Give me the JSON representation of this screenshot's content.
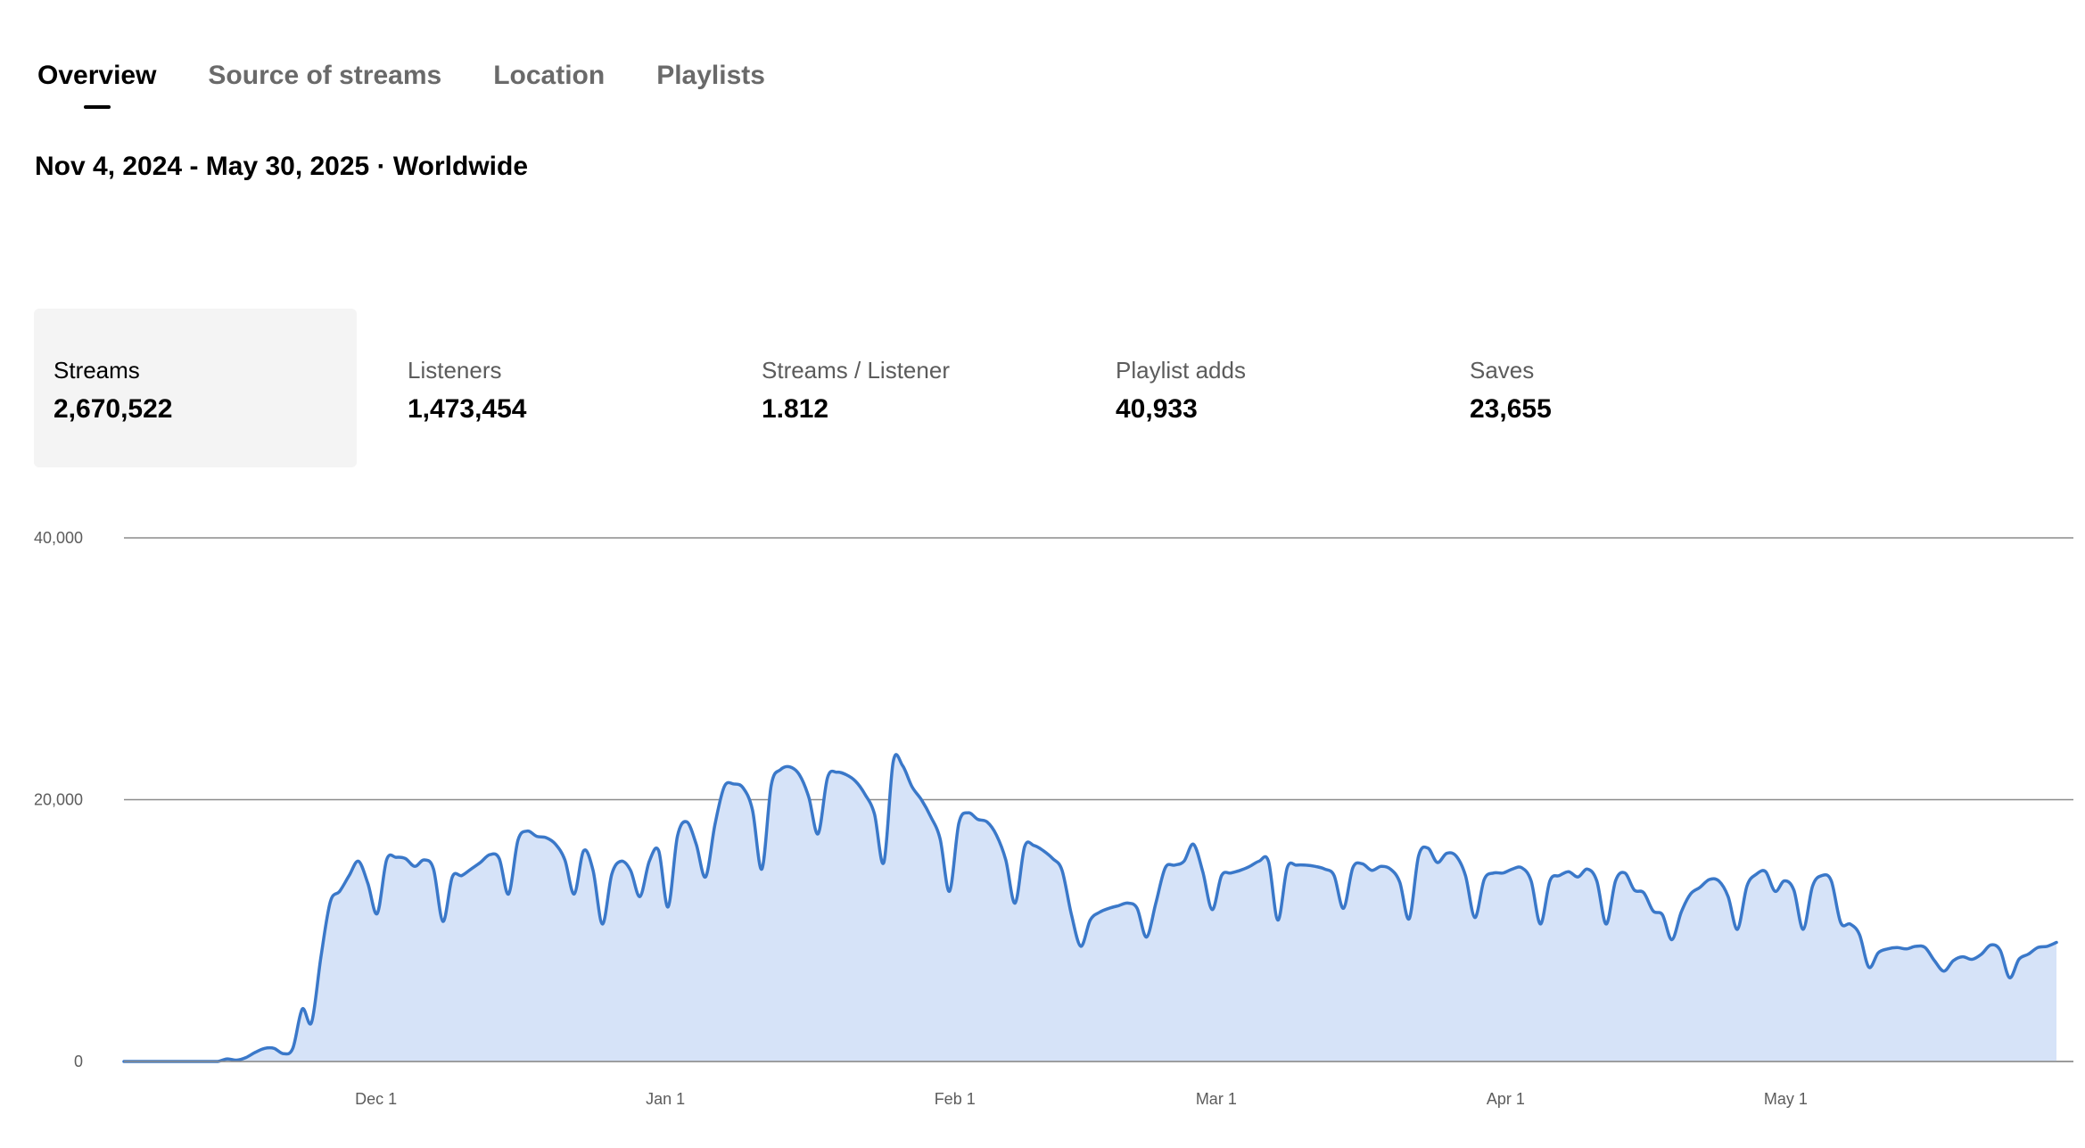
{
  "tabs": [
    {
      "label": "Overview",
      "active": true
    },
    {
      "label": "Source of streams",
      "active": false
    },
    {
      "label": "Location",
      "active": false
    },
    {
      "label": "Playlists",
      "active": false
    }
  ],
  "date_range": "Nov 4, 2024 - May 30, 2025 · Worldwide",
  "metrics": [
    {
      "label": "Streams",
      "value": "2,670,522",
      "selected": true
    },
    {
      "label": "Listeners",
      "value": "1,473,454",
      "selected": false
    },
    {
      "label": "Streams / Listener",
      "value": "1.812",
      "selected": false
    },
    {
      "label": "Playlist adds",
      "value": "40,933",
      "selected": false
    },
    {
      "label": "Saves",
      "value": "23,655",
      "selected": false
    }
  ],
  "colors": {
    "line": "#3a78c9",
    "fill": "#d6e3f8",
    "grid": "#8c8c8c",
    "axis_text": "#5c5c5c"
  },
  "chart_data": {
    "type": "area",
    "x_start": "2024-11-04",
    "x_end": "2025-05-30",
    "xlabel": "",
    "ylabel": "",
    "ylim": [
      0,
      40000
    ],
    "yticks": [
      {
        "value": 0,
        "label": "0"
      },
      {
        "value": 20000,
        "label": "20,000"
      },
      {
        "value": 40000,
        "label": "40,000"
      }
    ],
    "xticks": [
      {
        "date": "2024-12-01",
        "label": "Dec 1"
      },
      {
        "date": "2025-01-01",
        "label": "Jan 1"
      },
      {
        "date": "2025-02-01",
        "label": "Feb 1"
      },
      {
        "date": "2025-03-01",
        "label": "Mar 1"
      },
      {
        "date": "2025-04-01",
        "label": "Apr 1"
      },
      {
        "date": "2025-05-01",
        "label": "May 1"
      }
    ],
    "grid": true,
    "series": [
      {
        "values": [
          0,
          0,
          0,
          0,
          0,
          0,
          0,
          0,
          0,
          0,
          0,
          200,
          100,
          300,
          700,
          1000,
          1000,
          600,
          1000,
          4000,
          3000,
          8000,
          12200,
          13000,
          14200,
          15300,
          13600,
          11300,
          15400,
          15600,
          15500,
          14900,
          15400,
          14700,
          10700,
          14100,
          14200,
          14700,
          15200,
          15800,
          15500,
          12800,
          16900,
          17600,
          17200,
          17100,
          16600,
          15400,
          12800,
          16100,
          14600,
          10500,
          14300,
          15300,
          14600,
          12600,
          15300,
          16100,
          11800,
          17200,
          18300,
          16600,
          14100,
          18100,
          21000,
          21200,
          20900,
          19200,
          14700,
          21100,
          22300,
          22500,
          21900,
          20200,
          17400,
          21700,
          22100,
          21900,
          21400,
          20400,
          18900,
          15200,
          22900,
          22600,
          21000,
          20000,
          18700,
          17000,
          13000,
          18200,
          19000,
          18500,
          18300,
          17300,
          15400,
          12100,
          16400,
          16500,
          16100,
          15500,
          14600,
          11200,
          8800,
          10800,
          11400,
          11700,
          11900,
          12100,
          11700,
          9500,
          12100,
          14800,
          15000,
          15300,
          16600,
          14500,
          11600,
          14200,
          14400,
          14600,
          14900,
          15300,
          15300,
          10800,
          14800,
          15000,
          15000,
          14900,
          14700,
          14200,
          11700,
          14800,
          15100,
          14600,
          14900,
          14700,
          13700,
          10900,
          15700,
          16300,
          15200,
          15900,
          15700,
          14200,
          11000,
          13900,
          14400,
          14400,
          14700,
          14800,
          13800,
          10500,
          13800,
          14200,
          14500,
          14100,
          14700,
          13800,
          10500,
          13800,
          14400,
          13100,
          12900,
          11500,
          11200,
          9300,
          11400,
          12800,
          13300,
          13900,
          13800,
          12600,
          10100,
          13400,
          14300,
          14500,
          13000,
          13800,
          13100,
          10100,
          13400,
          14200,
          13800,
          10600,
          10500,
          9700,
          7200,
          8300,
          8600,
          8700,
          8600,
          8800,
          8700,
          7700,
          6900,
          7700,
          8000,
          7800,
          8200,
          8900,
          8500,
          6400,
          7800,
          8200,
          8700,
          8800,
          9100
        ]
      }
    ]
  }
}
